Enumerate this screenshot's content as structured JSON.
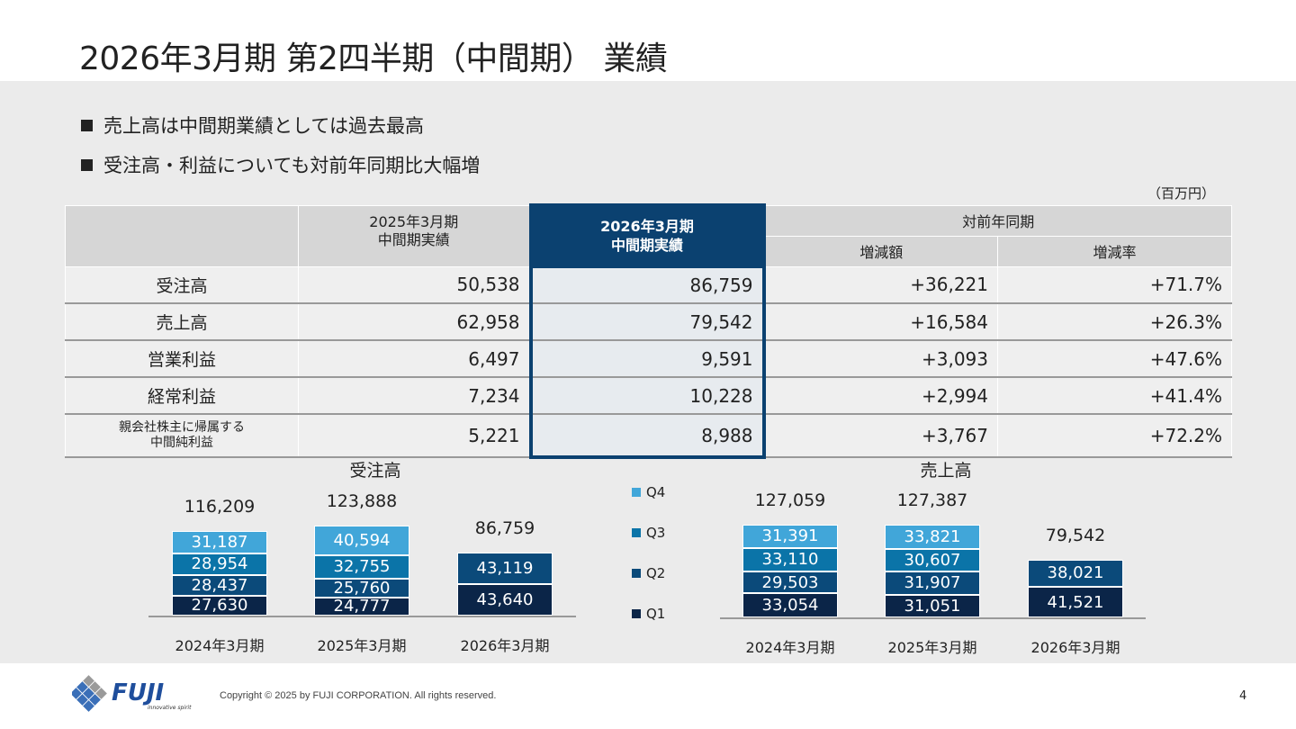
{
  "title": "2026年3月期 第2四半期（中間期） 業績",
  "bullets": [
    "売上高は中間期業績としては過去最高",
    "受注高・利益についても対前年同期比大幅増"
  ],
  "unit": "（百万円）",
  "table": {
    "headers": {
      "prev": "2025年3月期\n中間期実績",
      "curr": "2026年3月期\n中間期実績",
      "yoy": "対前年同期",
      "diff": "増減額",
      "rate": "増減率"
    },
    "rows": [
      {
        "label": "受注高",
        "prev": "50,538",
        "curr": "86,759",
        "diff": "+36,221",
        "rate": "+71.7%"
      },
      {
        "label": "売上高",
        "prev": "62,958",
        "curr": "79,542",
        "diff": "+16,584",
        "rate": "+26.3%"
      },
      {
        "label": "営業利益",
        "prev": "6,497",
        "curr": "9,591",
        "diff": "+3,093",
        "rate": "+47.6%"
      },
      {
        "label": "経常利益",
        "prev": "7,234",
        "curr": "10,228",
        "diff": "+2,994",
        "rate": "+41.4%"
      },
      {
        "label": "親会社株主に帰属する\n中間純利益",
        "prev": "5,221",
        "curr": "8,988",
        "diff": "+3,767",
        "rate": "+72.2%"
      }
    ]
  },
  "legend": [
    {
      "name": "Q4",
      "color": "#41a6d9"
    },
    {
      "name": "Q3",
      "color": "#0b74a8"
    },
    {
      "name": "Q2",
      "color": "#0b4a7a"
    },
    {
      "name": "Q1",
      "color": "#0b2548"
    }
  ],
  "chart_data": [
    {
      "type": "bar",
      "stacked": true,
      "title": "受注高",
      "categories": [
        "2024年3月期",
        "2025年3月期",
        "2026年3月期"
      ],
      "totals": [
        "116,209",
        "123,888",
        "86,759"
      ],
      "series": [
        {
          "name": "Q1",
          "values": [
            27630,
            24777,
            43640
          ],
          "labels": [
            "27,630",
            "24,777",
            "43,640"
          ]
        },
        {
          "name": "Q2",
          "values": [
            28437,
            25760,
            43119
          ],
          "labels": [
            "28,437",
            "25,760",
            "43,119"
          ]
        },
        {
          "name": "Q3",
          "values": [
            28954,
            32755,
            null
          ],
          "labels": [
            "28,954",
            "32,755",
            null
          ]
        },
        {
          "name": "Q4",
          "values": [
            31187,
            40594,
            null
          ],
          "labels": [
            "31,187",
            "40,594",
            null
          ]
        }
      ],
      "legend": "center-left"
    },
    {
      "type": "bar",
      "stacked": true,
      "title": "売上高",
      "categories": [
        "2024年3月期",
        "2025年3月期",
        "2026年3月期"
      ],
      "totals": [
        "127,059",
        "127,387",
        "79,542"
      ],
      "series": [
        {
          "name": "Q1",
          "values": [
            33054,
            31051,
            41521
          ],
          "labels": [
            "33,054",
            "31,051",
            "41,521"
          ]
        },
        {
          "name": "Q2",
          "values": [
            29503,
            31907,
            38021
          ],
          "labels": [
            "29,503",
            "31,907",
            "38,021"
          ]
        },
        {
          "name": "Q3",
          "values": [
            33110,
            30607,
            null
          ],
          "labels": [
            "33,110",
            "30,607",
            null
          ]
        },
        {
          "name": "Q4",
          "values": [
            31391,
            33821,
            null
          ],
          "labels": [
            "31,391",
            "33,821",
            null
          ]
        }
      ]
    }
  ],
  "footer": {
    "logo_text": "FUJI",
    "logo_tagline": "innovative spirit",
    "copyright": "Copyright © 2025 by FUJI CORPORATION. All rights reserved.",
    "page": "4"
  }
}
